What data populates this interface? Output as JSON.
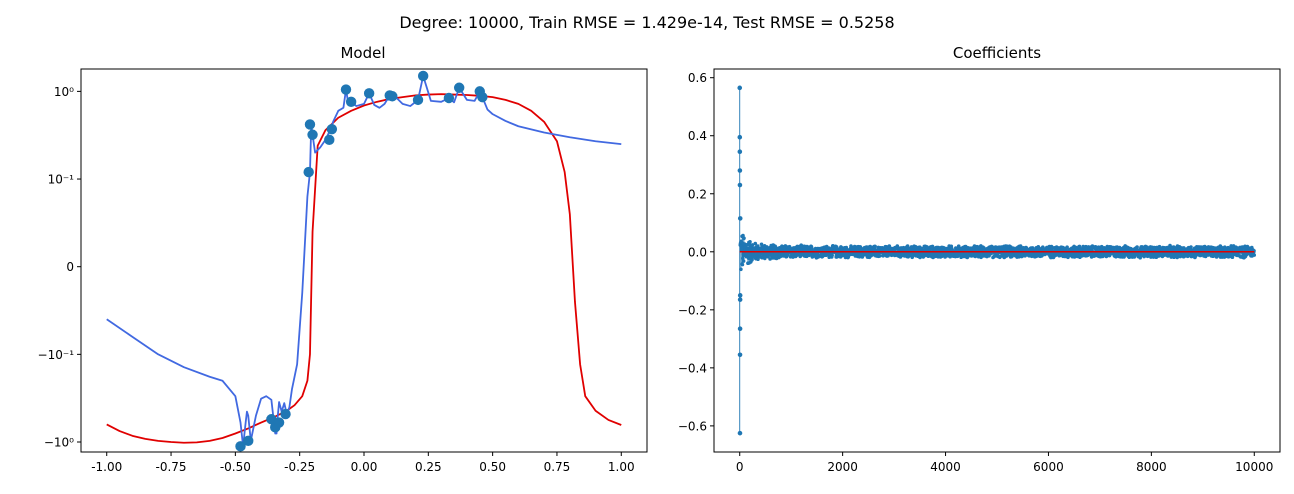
{
  "suptitle": "Degree: 10000, Train RMSE = 1.429e-14, Test RMSE = 0.5258",
  "chart_data": [
    {
      "type": "line",
      "title": "Model",
      "xlabel": "",
      "ylabel": "",
      "yscale": "symlog",
      "symlog_linthresh": 0.1,
      "xlim": [
        -1.1,
        1.1
      ],
      "ylim": [
        -1.3,
        1.8
      ],
      "xticks": [
        "-1.00",
        "-0.75",
        "-0.50",
        "-0.25",
        "0.00",
        "0.25",
        "0.50",
        "0.75",
        "1.00"
      ],
      "xtick_values": [
        -1.0,
        -0.75,
        -0.5,
        -0.25,
        0.0,
        0.25,
        0.5,
        0.75,
        1.0
      ],
      "yticks": [
        "10⁰",
        "10⁻¹",
        "0",
        "−10⁻¹",
        "−10⁰"
      ],
      "ytick_values": [
        1.0,
        0.1,
        0.0,
        -0.1,
        -1.0
      ],
      "grid": false,
      "points": {
        "x": [
          -0.48,
          -0.45,
          -0.36,
          -0.345,
          -0.33,
          -0.305,
          -0.215,
          -0.21,
          -0.2,
          -0.135,
          -0.125,
          -0.07,
          -0.05,
          0.02,
          0.1,
          0.11,
          0.21,
          0.23,
          0.33,
          0.37,
          0.45,
          0.46
        ],
        "y": [
          -1.12,
          -0.97,
          -0.55,
          -0.68,
          -0.6,
          -0.48,
          0.12,
          0.42,
          0.32,
          0.28,
          0.37,
          1.05,
          0.76,
          0.95,
          0.9,
          0.88,
          0.8,
          1.5,
          0.84,
          1.1,
          1.0,
          0.86
        ],
        "color": "#1f77b4"
      },
      "series": [
        {
          "color": "#e00000",
          "x": [
            -1.0,
            -0.95,
            -0.9,
            -0.85,
            -0.8,
            -0.75,
            -0.7,
            -0.65,
            -0.6,
            -0.55,
            -0.5,
            -0.45,
            -0.4,
            -0.35,
            -0.3,
            -0.27,
            -0.24,
            -0.22,
            -0.21,
            -0.2,
            -0.18,
            -0.15,
            -0.1,
            -0.05,
            0.0,
            0.05,
            0.1,
            0.15,
            0.2,
            0.25,
            0.3,
            0.35,
            0.4,
            0.45,
            0.5,
            0.55,
            0.6,
            0.65,
            0.7,
            0.75,
            0.78,
            0.8,
            0.82,
            0.84,
            0.86,
            0.9,
            0.95,
            1.0
          ],
          "y": [
            -0.63,
            -0.75,
            -0.85,
            -0.92,
            -0.97,
            -1.0,
            -1.02,
            -1.01,
            -0.97,
            -0.9,
            -0.8,
            -0.7,
            -0.6,
            -0.52,
            -0.44,
            -0.38,
            -0.3,
            -0.2,
            -0.1,
            0.04,
            0.24,
            0.36,
            0.5,
            0.6,
            0.69,
            0.76,
            0.82,
            0.86,
            0.9,
            0.92,
            0.93,
            0.92,
            0.91,
            0.89,
            0.86,
            0.8,
            0.72,
            0.6,
            0.45,
            0.27,
            0.12,
            0.06,
            -0.04,
            -0.13,
            -0.3,
            -0.44,
            -0.56,
            -0.64
          ]
        },
        {
          "color": "#4169e1",
          "x": [
            -1.0,
            -0.9,
            -0.8,
            -0.7,
            -0.6,
            -0.55,
            -0.5,
            -0.48,
            -0.47,
            -0.46,
            -0.455,
            -0.45,
            -0.44,
            -0.42,
            -0.4,
            -0.38,
            -0.36,
            -0.35,
            -0.345,
            -0.34,
            -0.335,
            -0.33,
            -0.32,
            -0.31,
            -0.3,
            -0.29,
            -0.28,
            -0.26,
            -0.24,
            -0.22,
            -0.21,
            -0.205,
            -0.2,
            -0.19,
            -0.17,
            -0.15,
            -0.13,
            -0.12,
            -0.1,
            -0.08,
            -0.07,
            -0.06,
            -0.05,
            -0.03,
            0.0,
            0.02,
            0.04,
            0.06,
            0.08,
            0.1,
            0.12,
            0.15,
            0.18,
            0.21,
            0.23,
            0.26,
            0.3,
            0.33,
            0.35,
            0.37,
            0.4,
            0.43,
            0.45,
            0.46,
            0.48,
            0.5,
            0.55,
            0.6,
            0.7,
            0.8,
            0.9,
            1.0
          ],
          "y": [
            -0.06,
            -0.08,
            -0.1,
            -0.14,
            -0.18,
            -0.2,
            -0.3,
            -0.6,
            -1.12,
            -0.6,
            -0.45,
            -0.5,
            -0.97,
            -0.5,
            -0.32,
            -0.3,
            -0.33,
            -0.6,
            -0.8,
            -0.8,
            -0.5,
            -0.35,
            -0.45,
            -0.36,
            -0.48,
            -0.4,
            -0.25,
            -0.13,
            -0.03,
            0.08,
            0.12,
            0.42,
            0.32,
            0.2,
            0.23,
            0.28,
            0.37,
            0.45,
            0.6,
            0.65,
            1.05,
            0.7,
            0.76,
            0.68,
            0.72,
            0.95,
            0.7,
            0.65,
            0.72,
            0.9,
            0.88,
            0.72,
            0.68,
            0.8,
            1.5,
            0.78,
            0.76,
            0.84,
            0.75,
            1.1,
            0.8,
            0.78,
            1.0,
            0.86,
            0.62,
            0.55,
            0.46,
            0.4,
            0.34,
            0.3,
            0.27,
            0.25
          ]
        }
      ]
    },
    {
      "type": "scatter",
      "title": "Coefficients",
      "xlabel": "",
      "ylabel": "",
      "xlim": [
        -500,
        10500
      ],
      "ylim": [
        -0.69,
        0.63
      ],
      "xticks": [
        "0",
        "2000",
        "4000",
        "6000",
        "8000",
        "10000"
      ],
      "xtick_values": [
        0,
        2000,
        4000,
        6000,
        8000,
        10000
      ],
      "yticks": [
        "0.6",
        "0.4",
        "0.2",
        "0.0",
        "−0.2",
        "−0.4",
        "−0.6"
      ],
      "ytick_values": [
        0.6,
        0.4,
        0.2,
        0.0,
        -0.2,
        -0.4,
        -0.6
      ],
      "grid": false,
      "n_coefficients": 10001,
      "marker_color": "#1f77b4",
      "baseline_color": "#e00000",
      "highlight_points": {
        "x": [
          0,
          1,
          2,
          3,
          4,
          5,
          6,
          7,
          8,
          9,
          10
        ],
        "y": [
          0.565,
          0.395,
          0.345,
          0.28,
          0.23,
          -0.625,
          -0.355,
          -0.265,
          -0.165,
          -0.15,
          0.115
        ]
      },
      "envelope": {
        "x": [
          0,
          20,
          50,
          100,
          200,
          300,
          500,
          1000,
          2000,
          4000,
          6000,
          8000,
          10000
        ],
        "amplitude": [
          0.12,
          0.1,
          0.075,
          0.06,
          0.045,
          0.035,
          0.028,
          0.024,
          0.022,
          0.022,
          0.022,
          0.022,
          0.022
        ]
      }
    }
  ]
}
